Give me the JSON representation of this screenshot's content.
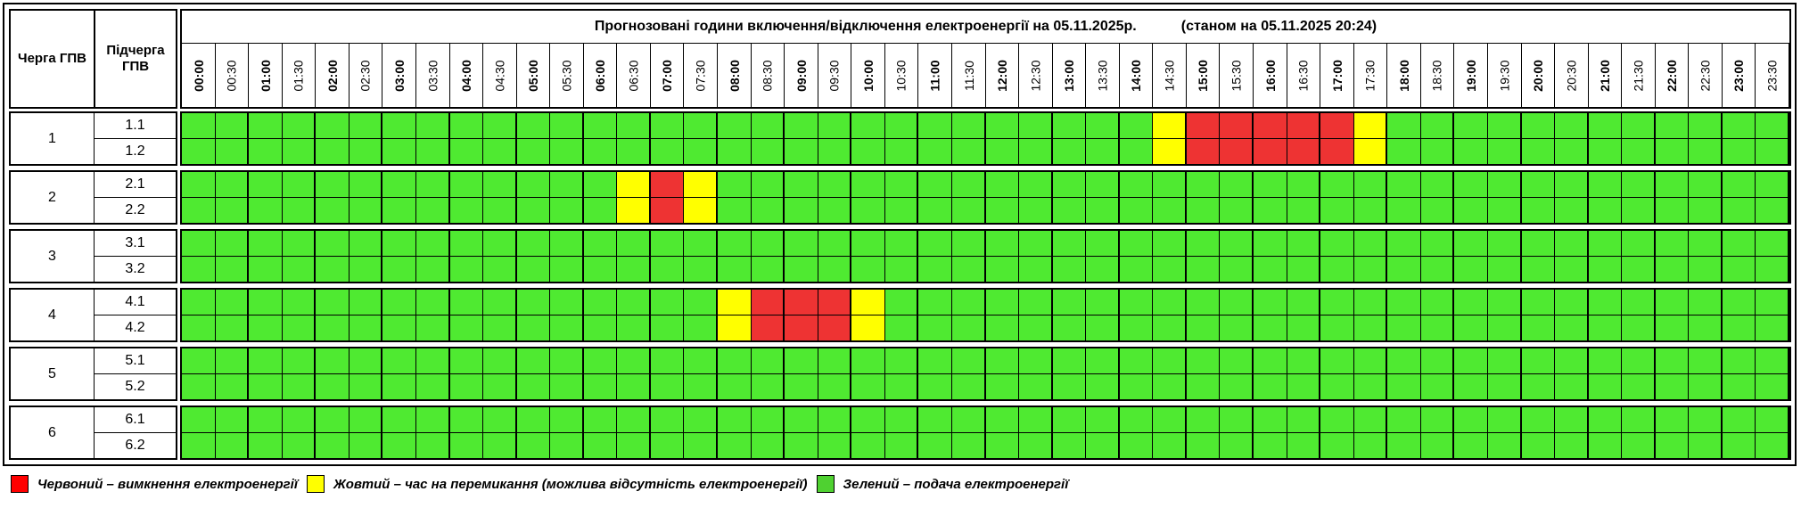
{
  "header": {
    "queue_label": "Черга ГПВ",
    "subqueue_label": "Підчерга ГПВ",
    "title": "Прогнозовані години включення/відключення електроенергії на 05.11.2025р.",
    "status": "(станом на 05.11.2025 20:24)"
  },
  "times": [
    "00:00",
    "00:30",
    "01:00",
    "01:30",
    "02:00",
    "02:30",
    "03:00",
    "03:30",
    "04:00",
    "04:30",
    "05:00",
    "05:30",
    "06:00",
    "06:30",
    "07:00",
    "07:30",
    "08:00",
    "08:30",
    "09:00",
    "09:30",
    "10:00",
    "10:30",
    "11:00",
    "11:30",
    "12:00",
    "12:30",
    "13:00",
    "13:30",
    "14:00",
    "14:30",
    "15:00",
    "15:30",
    "16:00",
    "16:30",
    "17:00",
    "17:30",
    "18:00",
    "18:30",
    "19:00",
    "19:30",
    "20:00",
    "20:30",
    "21:00",
    "21:30",
    "22:00",
    "22:30",
    "23:00",
    "23:30"
  ],
  "colors": {
    "red": "#ee3333",
    "yellow": "#ffff00",
    "green": "#4fea31"
  },
  "queues": [
    {
      "name": "1",
      "subs": [
        {
          "name": "1.1",
          "states": "GGGGGGGGGGGGGGGGGGGGGGGGGGGGGYRRRRRYGGGGGGGGGGGG"
        },
        {
          "name": "1.2",
          "states": "GGGGGGGGGGGGGGGGGGGGGGGGGGGGGYRRRRRYGGGGGGGGGGGG"
        }
      ]
    },
    {
      "name": "2",
      "subs": [
        {
          "name": "2.1",
          "states": "GGGGGGGGGGGGGYRYGGGGGGGGGGGGGGGGGGGGGGGGGGGGGGGG"
        },
        {
          "name": "2.2",
          "states": "GGGGGGGGGGGGGYRYGGGGGGGGGGGGGGGGGGGGGGGGGGGGGGGG"
        }
      ]
    },
    {
      "name": "3",
      "subs": [
        {
          "name": "3.1",
          "states": "GGGGGGGGGGGGGGGGGGGGGGGGGGGGGGGGGGGGGGGGGGGGGGGG"
        },
        {
          "name": "3.2",
          "states": "GGGGGGGGGGGGGGGGGGGGGGGGGGGGGGGGGGGGGGGGGGGGGGGG"
        }
      ]
    },
    {
      "name": "4",
      "subs": [
        {
          "name": "4.1",
          "states": "GGGGGGGGGGGGGGGGYRRRYGGGGGGGGGGGGGGGGGGGGGGGGGGG"
        },
        {
          "name": "4.2",
          "states": "GGGGGGGGGGGGGGGGYRRRYGGGGGGGGGGGGGGGGGGGGGGGGGGG"
        }
      ]
    },
    {
      "name": "5",
      "subs": [
        {
          "name": "5.1",
          "states": "GGGGGGGGGGGGGGGGGGGGGGGGGGGGGGGGGGGGGGGGGGGGGGGG"
        },
        {
          "name": "5.2",
          "states": "GGGGGGGGGGGGGGGGGGGGGGGGGGGGGGGGGGGGGGGGGGGGGGGG"
        }
      ]
    },
    {
      "name": "6",
      "subs": [
        {
          "name": "6.1",
          "states": "GGGGGGGGGGGGGGGGGGGGGGGGGGGGGGGGGGGGGGGGGGGGGGGG"
        },
        {
          "name": "6.2",
          "states": "GGGGGGGGGGGGGGGGGGGGGGGGGGGGGGGGGGGGGGGGGGGGGGGG"
        }
      ]
    }
  ],
  "legend": {
    "red": "Червоний – вимкнення електроенергії",
    "yellow": "Жовтий – час на перемикання (можлива відсутність електроенергії)",
    "green": "Зелений – подача електроенергії"
  }
}
